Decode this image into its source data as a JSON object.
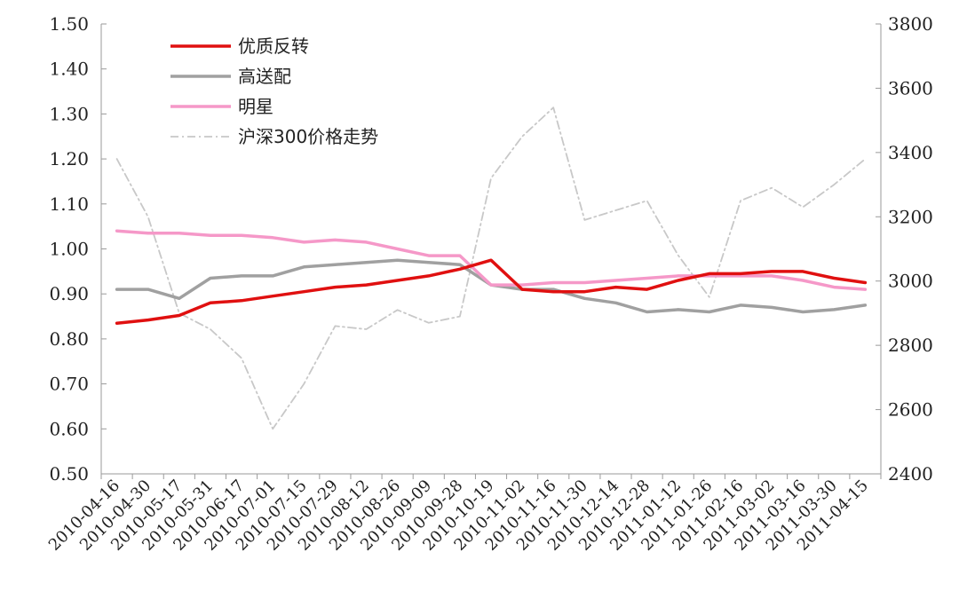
{
  "chart_data": {
    "type": "line",
    "title": "",
    "xlabel": "",
    "ylabel": "",
    "y2label": "",
    "ylim": [
      0.5,
      1.5
    ],
    "y2lim": [
      2400,
      3800
    ],
    "yticks": [
      "0.50",
      "0.60",
      "0.70",
      "0.80",
      "0.90",
      "1.00",
      "1.10",
      "1.20",
      "1.30",
      "1.40",
      "1.50"
    ],
    "y2ticks": [
      "2400",
      "2600",
      "2800",
      "3000",
      "3200",
      "3400",
      "3600",
      "3800"
    ],
    "grid": false,
    "legend_position": "top-left",
    "categories": [
      "2010-04-16",
      "2010-04-30",
      "2010-05-17",
      "2010-05-31",
      "2010-06-17",
      "2010-07-01",
      "2010-07-15",
      "2010-07-29",
      "2010-08-12",
      "2010-08-26",
      "2010-09-09",
      "2010-09-28",
      "2010-10-19",
      "2010-11-02",
      "2010-11-16",
      "2010-11-30",
      "2010-12-14",
      "2010-12-28",
      "2011-01-12",
      "2011-01-26",
      "2011-02-16",
      "2011-03-02",
      "2011-03-16",
      "2011-03-30",
      "2011-04-15"
    ],
    "series": [
      {
        "name": "优质反转",
        "axis": "left",
        "color": "#e01010",
        "style": "solid",
        "values": [
          0.835,
          0.842,
          0.852,
          0.88,
          0.885,
          0.895,
          0.905,
          0.915,
          0.92,
          0.93,
          0.94,
          0.955,
          0.975,
          0.91,
          0.905,
          0.905,
          0.915,
          0.91,
          0.93,
          0.945,
          0.945,
          0.95,
          0.95,
          0.935,
          0.925
        ]
      },
      {
        "name": "高送配",
        "axis": "left",
        "color": "#a0a0a0",
        "style": "solid",
        "values": [
          0.91,
          0.91,
          0.89,
          0.935,
          0.94,
          0.94,
          0.96,
          0.965,
          0.97,
          0.975,
          0.97,
          0.965,
          0.92,
          0.91,
          0.91,
          0.89,
          0.88,
          0.86,
          0.865,
          0.86,
          0.875,
          0.87,
          0.86,
          0.865,
          0.875
        ]
      },
      {
        "name": "明星",
        "axis": "left",
        "color": "#f598c8",
        "style": "solid",
        "values": [
          1.04,
          1.035,
          1.035,
          1.03,
          1.03,
          1.025,
          1.015,
          1.02,
          1.015,
          1.0,
          0.985,
          0.985,
          0.92,
          0.92,
          0.925,
          0.925,
          0.93,
          0.935,
          0.94,
          0.94,
          0.94,
          0.94,
          0.93,
          0.915,
          0.91
        ]
      },
      {
        "name": "沪深300价格走势",
        "axis": "right",
        "color": "#c8c8c8",
        "style": "dashdot",
        "values": [
          3380,
          3200,
          2900,
          2850,
          2760,
          2540,
          2680,
          2860,
          2850,
          2910,
          2870,
          2890,
          3320,
          3450,
          3540,
          3190,
          3220,
          3250,
          3080,
          2950,
          3250,
          3290,
          3230,
          3300,
          3380
        ]
      }
    ]
  }
}
